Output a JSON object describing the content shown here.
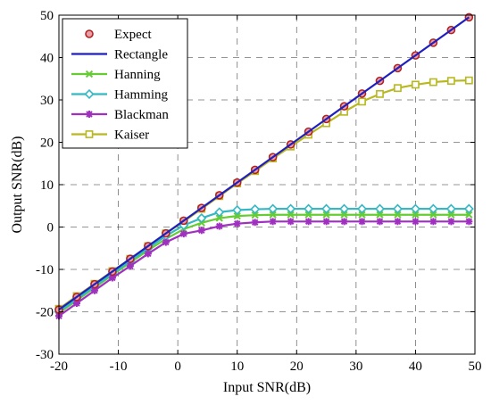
{
  "chart_data": {
    "type": "line",
    "xlabel": "Input SNR(dB)",
    "ylabel": "Output SNR(dB)",
    "xlim": [
      -20,
      50
    ],
    "ylim": [
      -30,
      50
    ],
    "x_ticks": [
      -20,
      -10,
      0,
      10,
      20,
      30,
      40,
      50
    ],
    "y_ticks": [
      -30,
      -20,
      -10,
      0,
      10,
      20,
      30,
      40,
      50
    ],
    "grid": true,
    "legend_position": "top-left",
    "x": [
      -20,
      -17,
      -14,
      -11,
      -8,
      -5,
      -2,
      1,
      4,
      7,
      10,
      13,
      16,
      19,
      22,
      25,
      28,
      31,
      34,
      37,
      40,
      43,
      46,
      49
    ],
    "series": [
      {
        "name": "Expect",
        "color": "#e8a0a8",
        "edge_color": "#b22222",
        "marker": "circle",
        "line": false,
        "values": [
          -19.5,
          -16.5,
          -13.5,
          -10.5,
          -7.5,
          -4.5,
          -1.5,
          1.5,
          4.5,
          7.5,
          10.5,
          13.5,
          16.5,
          19.5,
          22.5,
          25.5,
          28.5,
          31.5,
          34.5,
          37.5,
          40.5,
          43.5,
          46.5,
          49.5
        ]
      },
      {
        "name": "Rectangle",
        "color": "#1f1fbf",
        "marker": "none",
        "line": true,
        "values": [
          -19.5,
          -16.5,
          -13.5,
          -10.5,
          -7.5,
          -4.5,
          -1.5,
          1.5,
          4.5,
          7.5,
          10.5,
          13.5,
          16.5,
          19.5,
          22.5,
          25.5,
          28.5,
          31.5,
          34.5,
          37.5,
          40.5,
          43.5,
          46.5,
          49.5
        ]
      },
      {
        "name": "Hanning",
        "color": "#66cc33",
        "marker_color": "#66cc33",
        "marker": "x",
        "line": true,
        "values": [
          -20.3,
          -17.3,
          -14.3,
          -11.3,
          -8.4,
          -5.5,
          -2.8,
          -0.5,
          1.0,
          2.1,
          2.6,
          2.8,
          2.9,
          2.9,
          2.9,
          2.9,
          2.9,
          2.9,
          2.9,
          2.9,
          2.9,
          2.9,
          2.9,
          2.9
        ]
      },
      {
        "name": "Hamming",
        "color": "#33b8c4",
        "marker_color": "#33b8c4",
        "marker": "diamond",
        "line": true,
        "values": [
          -20.0,
          -17.0,
          -14.0,
          -11.0,
          -8.0,
          -5.0,
          -2.1,
          0.4,
          2.1,
          3.5,
          4.0,
          4.2,
          4.3,
          4.3,
          4.3,
          4.3,
          4.3,
          4.3,
          4.3,
          4.3,
          4.3,
          4.3,
          4.3,
          4.3
        ]
      },
      {
        "name": "Blackman",
        "color": "#a030c0",
        "marker_color": "#a030c0",
        "marker": "star",
        "line": true,
        "values": [
          -21.0,
          -18.0,
          -15.0,
          -12.0,
          -9.2,
          -6.3,
          -3.6,
          -1.6,
          -0.8,
          0.2,
          0.8,
          1.1,
          1.3,
          1.3,
          1.3,
          1.3,
          1.3,
          1.3,
          1.3,
          1.3,
          1.3,
          1.3,
          1.3,
          1.3
        ]
      },
      {
        "name": "Kaiser",
        "color": "#b8b820",
        "marker_color": "#b8b820",
        "marker": "square",
        "line": true,
        "values": [
          -19.3,
          -16.3,
          -13.4,
          -10.4,
          -7.5,
          -4.5,
          -1.5,
          1.3,
          4.3,
          7.3,
          10.3,
          13.2,
          16.2,
          19.0,
          21.8,
          24.5,
          27.2,
          29.6,
          31.4,
          32.8,
          33.6,
          34.2,
          34.5,
          34.6
        ]
      }
    ]
  }
}
